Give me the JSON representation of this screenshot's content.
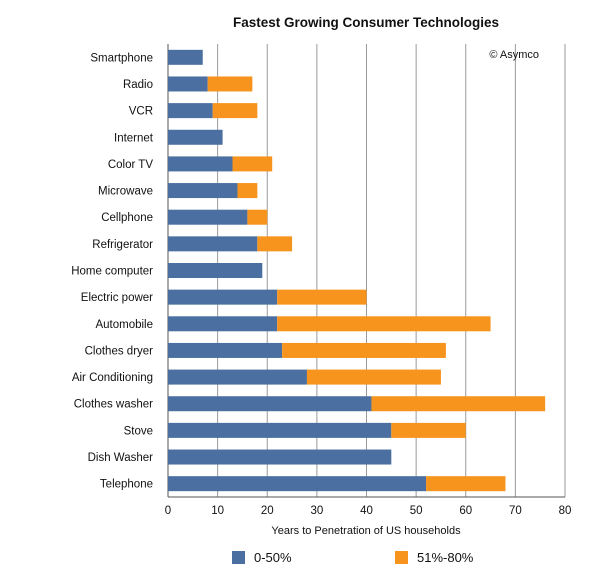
{
  "chart_data": {
    "type": "bar",
    "orientation": "horizontal",
    "stacked": true,
    "title": "Fastest Growing Consumer Technologies",
    "annotation": "© Asymco",
    "xlabel": "Years to Penetration of US households",
    "ylabel": "",
    "xlim": [
      0,
      80
    ],
    "xticks": [
      0,
      10,
      20,
      30,
      40,
      50,
      60,
      70,
      80
    ],
    "grid": "vertical",
    "legend_position": "bottom",
    "categories": [
      "Smartphone",
      "Radio",
      "VCR",
      "Internet",
      "Color TV",
      "Microwave",
      "Cellphone",
      "Refrigerator",
      "Home computer",
      "Electric power",
      "Automobile",
      "Clothes dryer",
      "Air Conditioning",
      "Clothes washer",
      "Stove",
      "Dish Washer",
      "Telephone"
    ],
    "series": [
      {
        "name": "0-50%",
        "color": "#4a6fa0",
        "values": [
          7,
          8,
          9,
          11,
          13,
          14,
          16,
          18,
          19,
          22,
          22,
          23,
          28,
          41,
          45,
          45,
          52
        ]
      },
      {
        "name": "51%-80%",
        "color": "#f7941d",
        "values": [
          null,
          9,
          9,
          null,
          8,
          4,
          4,
          7,
          null,
          18,
          43,
          33,
          27,
          35,
          15,
          null,
          16
        ]
      }
    ]
  }
}
